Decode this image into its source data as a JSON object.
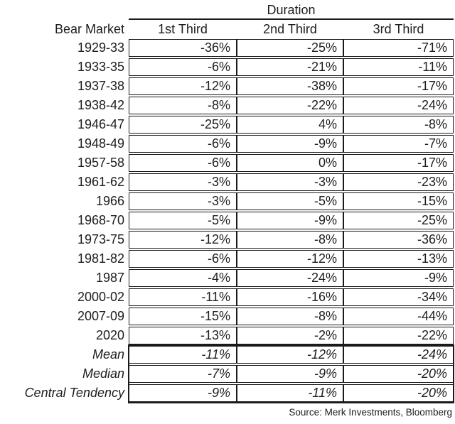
{
  "chart_data": {
    "type": "table",
    "title": "Duration",
    "row_header": "Bear Market",
    "columns": [
      "1st Third",
      "2nd Third",
      "3rd Third"
    ],
    "rows": [
      {
        "label": "1929-33",
        "values": [
          "-36%",
          "-25%",
          "-71%"
        ]
      },
      {
        "label": "1933-35",
        "values": [
          "-6%",
          "-21%",
          "-11%"
        ]
      },
      {
        "label": "1937-38",
        "values": [
          "-12%",
          "-38%",
          "-17%"
        ]
      },
      {
        "label": "1938-42",
        "values": [
          "-8%",
          "-22%",
          "-24%"
        ]
      },
      {
        "label": "1946-47",
        "values": [
          "-25%",
          "4%",
          "-8%"
        ]
      },
      {
        "label": "1948-49",
        "values": [
          "-6%",
          "-9%",
          "-7%"
        ]
      },
      {
        "label": "1957-58",
        "values": [
          "-6%",
          "0%",
          "-17%"
        ]
      },
      {
        "label": "1961-62",
        "values": [
          "-3%",
          "-3%",
          "-23%"
        ]
      },
      {
        "label": "1966",
        "values": [
          "-3%",
          "-5%",
          "-15%"
        ]
      },
      {
        "label": "1968-70",
        "values": [
          "-5%",
          "-9%",
          "-25%"
        ]
      },
      {
        "label": "1973-75",
        "values": [
          "-12%",
          "-8%",
          "-36%"
        ]
      },
      {
        "label": "1981-82",
        "values": [
          "-6%",
          "-12%",
          "-13%"
        ]
      },
      {
        "label": "1987",
        "values": [
          "-4%",
          "-24%",
          "-9%"
        ]
      },
      {
        "label": "2000-02",
        "values": [
          "-11%",
          "-16%",
          "-34%"
        ]
      },
      {
        "label": "2007-09",
        "values": [
          "-15%",
          "-8%",
          "-44%"
        ]
      },
      {
        "label": "2020",
        "values": [
          "-13%",
          "-2%",
          "-22%"
        ]
      }
    ],
    "summary_rows": [
      {
        "label": "Mean",
        "values": [
          "-11%",
          "-12%",
          "-24%"
        ]
      },
      {
        "label": "Median",
        "values": [
          "-7%",
          "-9%",
          "-20%"
        ]
      },
      {
        "label": "Central Tendency",
        "values": [
          "-9%",
          "-11%",
          "-20%"
        ]
      }
    ],
    "source": "Source: Merk Investments, Bloomberg",
    "layout": {
      "legend_position": "none",
      "grid": "cell-borders"
    }
  },
  "colors": {
    "text": "#1d1d1d",
    "border": "#1a1a1a",
    "background": "#ffffff"
  }
}
